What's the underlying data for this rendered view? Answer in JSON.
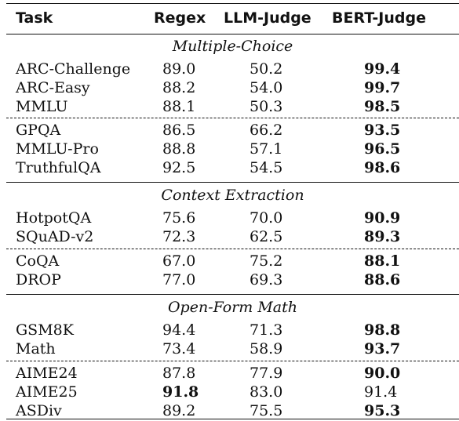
{
  "header": {
    "task": "Task",
    "regex": "Regex",
    "llm": "LLM-Judge",
    "bert": "BERT-Judge"
  },
  "sections": [
    {
      "title": "Multiple-Choice",
      "groups": [
        [
          {
            "task": "ARC-Challenge",
            "regex": "89.0",
            "llm": "50.2",
            "bert": "99.4",
            "bold": "bert"
          },
          {
            "task": "ARC-Easy",
            "regex": "88.2",
            "llm": "54.0",
            "bert": "99.7",
            "bold": "bert"
          },
          {
            "task": "MMLU",
            "regex": "88.1",
            "llm": "50.3",
            "bert": "98.5",
            "bold": "bert"
          }
        ],
        [
          {
            "task": "GPQA",
            "regex": "86.5",
            "llm": "66.2",
            "bert": "93.5",
            "bold": "bert"
          },
          {
            "task": "MMLU-Pro",
            "regex": "88.8",
            "llm": "57.1",
            "bert": "96.5",
            "bold": "bert"
          },
          {
            "task": "TruthfulQA",
            "regex": "92.5",
            "llm": "54.5",
            "bert": "98.6",
            "bold": "bert"
          }
        ]
      ]
    },
    {
      "title": "Context Extraction",
      "groups": [
        [
          {
            "task": "HotpotQA",
            "regex": "75.6",
            "llm": "70.0",
            "bert": "90.9",
            "bold": "bert"
          },
          {
            "task": "SQuAD-v2",
            "regex": "72.3",
            "llm": "62.5",
            "bert": "89.3",
            "bold": "bert"
          }
        ],
        [
          {
            "task": "CoQA",
            "regex": "67.0",
            "llm": "75.2",
            "bert": "88.1",
            "bold": "bert"
          },
          {
            "task": "DROP",
            "regex": "77.0",
            "llm": "69.3",
            "bert": "88.6",
            "bold": "bert"
          }
        ]
      ]
    },
    {
      "title": "Open-Form Math",
      "groups": [
        [
          {
            "task": "GSM8K",
            "regex": "94.4",
            "llm": "71.3",
            "bert": "98.8",
            "bold": "bert"
          },
          {
            "task": "Math",
            "regex": "73.4",
            "llm": "58.9",
            "bert": "93.7",
            "bold": "bert"
          }
        ],
        [
          {
            "task": "AIME24",
            "regex": "87.8",
            "llm": "77.9",
            "bert": "90.0",
            "bold": "bert"
          },
          {
            "task": "AIME25",
            "regex": "91.8",
            "llm": "83.0",
            "bert": "91.4",
            "bold": "regex"
          },
          {
            "task": "ASDiv",
            "regex": "89.2",
            "llm": "75.5",
            "bert": "95.3",
            "bold": "bert"
          }
        ]
      ]
    }
  ]
}
